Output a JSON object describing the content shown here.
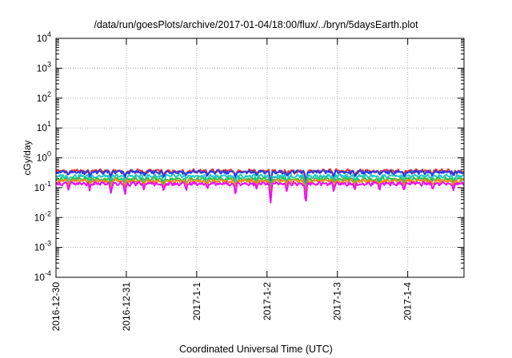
{
  "chart_data": {
    "type": "line",
    "title": "/data/run/goesPlots/archive/2017-01-04/18:00/flux/../bryn/5daysEarth.plot",
    "xlabel": "Coordinated Universal Time (UTC)",
    "ylabel": "cGy/day",
    "yscale": "log",
    "ylim": [
      0.0001,
      10000
    ],
    "xlim": [
      0,
      5.8
    ],
    "grid": true,
    "y_ticks": [
      {
        "value": 0.0001,
        "base": "10",
        "exp": "-4"
      },
      {
        "value": 0.001,
        "base": "10",
        "exp": "-3"
      },
      {
        "value": 0.01,
        "base": "10",
        "exp": "-2"
      },
      {
        "value": 0.1,
        "base": "10",
        "exp": "-1"
      },
      {
        "value": 1,
        "base": "10",
        "exp": "0"
      },
      {
        "value": 10,
        "base": "10",
        "exp": "1"
      },
      {
        "value": 100,
        "base": "10",
        "exp": "2"
      },
      {
        "value": 1000,
        "base": "10",
        "exp": "3"
      },
      {
        "value": 10000,
        "base": "10",
        "exp": "4"
      }
    ],
    "x_ticks": [
      {
        "value": 0,
        "label": "2016-12-30"
      },
      {
        "value": 1,
        "label": "2016-12-31"
      },
      {
        "value": 2,
        "label": "2017-1-1"
      },
      {
        "value": 3,
        "label": "2017-1-2"
      },
      {
        "value": 4,
        "label": "2017-1-3"
      },
      {
        "value": 5,
        "label": "2017-1-4"
      }
    ],
    "series": [
      {
        "color": "#e8343a",
        "base": 0.36,
        "dip_factor": 0.75
      },
      {
        "color": "#2a3be0",
        "base": 0.33,
        "dip_factor": 0.7
      },
      {
        "color": "#22c7c7",
        "base": 0.24,
        "dip_factor": 0.72
      },
      {
        "color": "#2fbf4a",
        "base": 0.19,
        "dip_factor": 0.75
      },
      {
        "color": "#f08a1c",
        "base": 0.165,
        "dip_factor": 0.75
      },
      {
        "color": "#ee10ee",
        "base": 0.135,
        "dip_factor": 0.55
      }
    ],
    "dips": [
      {
        "x": 0.18,
        "depth": 0.72
      },
      {
        "x": 0.48,
        "depth": 0.7
      },
      {
        "x": 0.78,
        "depth": 0.6
      },
      {
        "x": 0.98,
        "depth": 0.55
      },
      {
        "x": 1.25,
        "depth": 0.72
      },
      {
        "x": 1.53,
        "depth": 0.6
      },
      {
        "x": 1.85,
        "depth": 0.7
      },
      {
        "x": 2.15,
        "depth": 0.72
      },
      {
        "x": 2.55,
        "depth": 0.6
      },
      {
        "x": 2.85,
        "depth": 0.75
      },
      {
        "x": 3.05,
        "depth": 0.22
      },
      {
        "x": 3.28,
        "depth": 0.7
      },
      {
        "x": 3.55,
        "depth": 0.3
      },
      {
        "x": 3.95,
        "depth": 0.65
      },
      {
        "x": 4.25,
        "depth": 0.72
      },
      {
        "x": 4.6,
        "depth": 0.75
      },
      {
        "x": 4.95,
        "depth": 0.7
      },
      {
        "x": 5.35,
        "depth": 0.75
      },
      {
        "x": 5.65,
        "depth": 0.72
      }
    ]
  }
}
